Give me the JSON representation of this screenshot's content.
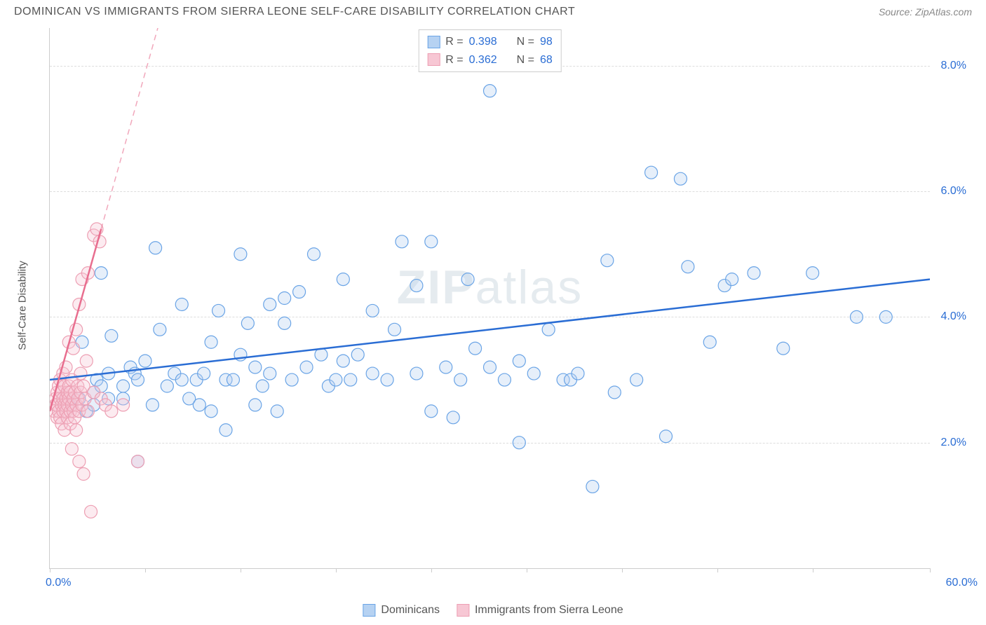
{
  "header": {
    "title": "DOMINICAN VS IMMIGRANTS FROM SIERRA LEONE SELF-CARE DISABILITY CORRELATION CHART",
    "source_prefix": "Source: ",
    "source_name": "ZipAtlas.com"
  },
  "chart": {
    "type": "scatter",
    "background_color": "#ffffff",
    "grid_color": "#dddddd",
    "axis_color": "#cccccc",
    "tick_font_color": "#2a6dd4",
    "label_font_color": "#555555",
    "tick_fontsize": 16,
    "label_fontsize": 15,
    "y_axis_label": "Self-Care Disability",
    "xlim": [
      0,
      60
    ],
    "ylim": [
      0,
      8.6
    ],
    "x_tick_positions": [
      0,
      6.5,
      13,
      19.5,
      26,
      32.5,
      39,
      45.5,
      52,
      60
    ],
    "x_min_label": "0.0%",
    "x_max_label": "60.0%",
    "y_gridlines": [
      2.0,
      4.0,
      6.0,
      8.0
    ],
    "y_tick_labels": [
      "2.0%",
      "4.0%",
      "6.0%",
      "8.0%"
    ],
    "watermark_bold": "ZIP",
    "watermark_light": "atlas",
    "marker_radius": 9,
    "marker_stroke_width": 1.2,
    "marker_fill_opacity": 0.35,
    "trend_line_width": 2.5,
    "trend_dash": "8,6"
  },
  "stats": {
    "rows": [
      {
        "swatch_fill": "#b6d2f2",
        "swatch_border": "#6aa4e6",
        "r_label": "R = ",
        "r_value": "0.398",
        "n_label": "N = ",
        "n_value": "98"
      },
      {
        "swatch_fill": "#f7c7d4",
        "swatch_border": "#ed9fb3",
        "r_label": "R = ",
        "r_value": "0.362",
        "n_label": "N = ",
        "n_value": "68"
      }
    ]
  },
  "legend": {
    "items": [
      {
        "swatch_fill": "#b6d2f2",
        "swatch_border": "#6aa4e6",
        "label": "Dominicans"
      },
      {
        "swatch_fill": "#f7c7d4",
        "swatch_border": "#ed9fb3",
        "label": "Immigrants from Sierra Leone"
      }
    ]
  },
  "series": [
    {
      "name": "Dominicans",
      "fill": "#b6d2f2",
      "stroke": "#6aa4e6",
      "trend_color": "#2a6dd4",
      "trend": {
        "x1": 0,
        "y1": 3.0,
        "x2": 60,
        "y2": 4.6,
        "dash_extend": false
      },
      "points": [
        [
          1.5,
          2.6
        ],
        [
          2.0,
          2.7
        ],
        [
          2.2,
          3.6
        ],
        [
          2.5,
          2.5
        ],
        [
          3.0,
          2.6
        ],
        [
          3.0,
          2.8
        ],
        [
          3.2,
          3.0
        ],
        [
          3.5,
          2.9
        ],
        [
          3.5,
          4.7
        ],
        [
          4.0,
          2.7
        ],
        [
          4.0,
          3.1
        ],
        [
          4.2,
          3.7
        ],
        [
          5.0,
          2.7
        ],
        [
          5.0,
          2.9
        ],
        [
          5.5,
          3.2
        ],
        [
          5.8,
          3.1
        ],
        [
          6.0,
          1.7
        ],
        [
          6.0,
          3.0
        ],
        [
          6.5,
          3.3
        ],
        [
          7.0,
          2.6
        ],
        [
          7.2,
          5.1
        ],
        [
          7.5,
          3.8
        ],
        [
          8.0,
          2.9
        ],
        [
          8.5,
          3.1
        ],
        [
          9.0,
          3.0
        ],
        [
          9.0,
          4.2
        ],
        [
          9.5,
          2.7
        ],
        [
          10.0,
          3.0
        ],
        [
          10.2,
          2.6
        ],
        [
          10.5,
          3.1
        ],
        [
          11.0,
          2.5
        ],
        [
          11.0,
          3.6
        ],
        [
          11.5,
          4.1
        ],
        [
          12.0,
          3.0
        ],
        [
          12.0,
          2.2
        ],
        [
          12.5,
          3.0
        ],
        [
          13.0,
          3.4
        ],
        [
          13.0,
          5.0
        ],
        [
          13.5,
          3.9
        ],
        [
          14.0,
          2.6
        ],
        [
          14.0,
          3.2
        ],
        [
          14.5,
          2.9
        ],
        [
          15.0,
          3.1
        ],
        [
          15.0,
          4.2
        ],
        [
          15.5,
          2.5
        ],
        [
          16.0,
          3.9
        ],
        [
          16.0,
          4.3
        ],
        [
          16.5,
          3.0
        ],
        [
          17.0,
          4.4
        ],
        [
          17.5,
          3.2
        ],
        [
          18.0,
          5.0
        ],
        [
          18.5,
          3.4
        ],
        [
          19.0,
          2.9
        ],
        [
          19.5,
          3.0
        ],
        [
          20.0,
          3.3
        ],
        [
          20.0,
          4.6
        ],
        [
          20.5,
          3.0
        ],
        [
          21.0,
          3.4
        ],
        [
          22.0,
          3.1
        ],
        [
          22.0,
          4.1
        ],
        [
          23.0,
          3.0
        ],
        [
          23.5,
          3.8
        ],
        [
          24.0,
          5.2
        ],
        [
          25.0,
          3.1
        ],
        [
          25.0,
          4.5
        ],
        [
          26.0,
          2.5
        ],
        [
          26.0,
          5.2
        ],
        [
          27.0,
          3.2
        ],
        [
          27.5,
          2.4
        ],
        [
          28.0,
          3.0
        ],
        [
          28.5,
          4.6
        ],
        [
          29.0,
          3.5
        ],
        [
          30.0,
          3.2
        ],
        [
          30.0,
          7.6
        ],
        [
          31.0,
          3.0
        ],
        [
          32.0,
          3.3
        ],
        [
          32.0,
          2.0
        ],
        [
          33.0,
          3.1
        ],
        [
          34.0,
          3.8
        ],
        [
          35.0,
          3.0
        ],
        [
          35.5,
          3.0
        ],
        [
          36.0,
          3.1
        ],
        [
          37.0,
          1.3
        ],
        [
          38.0,
          4.9
        ],
        [
          38.5,
          2.8
        ],
        [
          40.0,
          3.0
        ],
        [
          41.0,
          6.3
        ],
        [
          42.0,
          2.1
        ],
        [
          43.0,
          6.2
        ],
        [
          43.5,
          4.8
        ],
        [
          45.0,
          3.6
        ],
        [
          46.0,
          4.5
        ],
        [
          46.5,
          4.6
        ],
        [
          48.0,
          4.7
        ],
        [
          50.0,
          3.5
        ],
        [
          52.0,
          4.7
        ],
        [
          55.0,
          4.0
        ],
        [
          57.0,
          4.0
        ]
      ]
    },
    {
      "name": "Immigrants from Sierra Leone",
      "fill": "#f7c7d4",
      "stroke": "#ed9fb3",
      "trend_color": "#e86e8f",
      "trend": {
        "x1": 0,
        "y1": 2.5,
        "x2": 3.5,
        "y2": 5.4,
        "dash_extend": true,
        "dash_x2": 10.5,
        "dash_y2": 11.2
      },
      "points": [
        [
          0.3,
          2.5
        ],
        [
          0.4,
          2.6
        ],
        [
          0.4,
          2.7
        ],
        [
          0.5,
          2.6
        ],
        [
          0.5,
          2.8
        ],
        [
          0.5,
          2.4
        ],
        [
          0.6,
          2.9
        ],
        [
          0.6,
          2.5
        ],
        [
          0.7,
          2.7
        ],
        [
          0.7,
          2.4
        ],
        [
          0.7,
          3.0
        ],
        [
          0.8,
          2.6
        ],
        [
          0.8,
          2.8
        ],
        [
          0.8,
          2.3
        ],
        [
          0.9,
          2.7
        ],
        [
          0.9,
          2.5
        ],
        [
          0.9,
          3.1
        ],
        [
          1.0,
          2.6
        ],
        [
          1.0,
          2.2
        ],
        [
          1.0,
          2.9
        ],
        [
          1.1,
          2.7
        ],
        [
          1.1,
          2.5
        ],
        [
          1.1,
          3.2
        ],
        [
          1.2,
          2.8
        ],
        [
          1.2,
          2.4
        ],
        [
          1.2,
          2.6
        ],
        [
          1.3,
          2.7
        ],
        [
          1.3,
          2.9
        ],
        [
          1.3,
          3.6
        ],
        [
          1.4,
          2.5
        ],
        [
          1.4,
          2.3
        ],
        [
          1.4,
          2.8
        ],
        [
          1.5,
          2.6
        ],
        [
          1.5,
          3.0
        ],
        [
          1.5,
          1.9
        ],
        [
          1.6,
          2.7
        ],
        [
          1.6,
          2.5
        ],
        [
          1.6,
          3.5
        ],
        [
          1.7,
          2.8
        ],
        [
          1.7,
          2.4
        ],
        [
          1.8,
          2.6
        ],
        [
          1.8,
          2.2
        ],
        [
          1.8,
          3.8
        ],
        [
          1.9,
          2.7
        ],
        [
          1.9,
          2.9
        ],
        [
          2.0,
          2.5
        ],
        [
          2.0,
          4.2
        ],
        [
          2.0,
          1.7
        ],
        [
          2.1,
          2.8
        ],
        [
          2.1,
          3.1
        ],
        [
          2.2,
          2.6
        ],
        [
          2.2,
          4.6
        ],
        [
          2.3,
          2.9
        ],
        [
          2.3,
          1.5
        ],
        [
          2.4,
          2.7
        ],
        [
          2.5,
          3.3
        ],
        [
          2.6,
          2.5
        ],
        [
          2.6,
          4.7
        ],
        [
          2.8,
          0.9
        ],
        [
          3.0,
          5.3
        ],
        [
          3.0,
          2.8
        ],
        [
          3.2,
          5.4
        ],
        [
          3.4,
          5.2
        ],
        [
          3.5,
          2.7
        ],
        [
          3.8,
          2.6
        ],
        [
          4.2,
          2.5
        ],
        [
          5.0,
          2.6
        ],
        [
          6.0,
          1.7
        ]
      ]
    }
  ]
}
